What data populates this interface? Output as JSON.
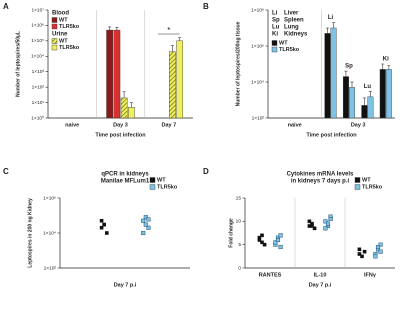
{
  "chart_data": [
    {
      "panel": "A",
      "type": "bar",
      "ylabel": "Number of leptospires/50µL",
      "xlabel": "Time post infection",
      "categories": [
        "naive",
        "Day 3",
        "Day 7"
      ],
      "log": true,
      "ylim": [
        1,
        10000000
      ],
      "yticks": [
        {
          "value": 1,
          "label": "1×10⁰"
        },
        {
          "value": 10,
          "label": "1×10¹"
        },
        {
          "value": 100,
          "label": "1×10²"
        },
        {
          "value": 1000,
          "label": "1×10³"
        },
        {
          "value": 10000,
          "label": "1×10⁴"
        },
        {
          "value": 100000,
          "label": "1×10⁵"
        },
        {
          "value": 1000000,
          "label": "1×10⁶"
        },
        {
          "value": 10000000,
          "label": "1×10⁷"
        }
      ],
      "series_groups": [
        {
          "name": "Blood",
          "series": [
            {
              "name": "WT",
              "color": "#8b1a1a",
              "values": [
                null,
                500000,
                null
              ],
              "errors": [
                null,
                300000,
                null
              ]
            },
            {
              "name": "TLR5ko",
              "color": "#d93030",
              "values": [
                null,
                500000,
                null
              ],
              "errors": [
                null,
                250000,
                null
              ]
            }
          ]
        },
        {
          "name": "Urine",
          "series": [
            {
              "name": "WT",
              "color": "#9a9a2a",
              "hatch": true,
              "values": [
                null,
                20,
                20000
              ],
              "errors": [
                null,
                30,
                30000
              ]
            },
            {
              "name": "TLR5ko",
              "color": "#f0ef60",
              "values": [
                null,
                5,
                100000
              ],
              "errors": [
                null,
                5,
                60000
              ]
            }
          ]
        }
      ],
      "annotations": [
        "*"
      ]
    },
    {
      "panel": "B",
      "type": "bar",
      "ylabel": "Number of leptospires/200ng tissue",
      "xlabel": "Time post infection",
      "x_groups": [
        "naive",
        "Day 3"
      ],
      "categories": [
        "Li",
        "Sp",
        "Lu",
        "Ki"
      ],
      "key": [
        [
          "Li",
          "Liver"
        ],
        [
          "Sp",
          "Spleen"
        ],
        [
          "Lu",
          "Lung"
        ],
        [
          "Ki",
          "Kidneys"
        ]
      ],
      "log": true,
      "ylim": [
        100,
        100000000
      ],
      "yticks": [
        {
          "value": 100,
          "label": "1×10²"
        },
        {
          "value": 10000,
          "label": "1×10⁴"
        },
        {
          "value": 1000000,
          "label": "1×10⁶"
        },
        {
          "value": 100000000,
          "label": "1×10⁸"
        }
      ],
      "series": [
        {
          "name": "WT",
          "color": "#111111",
          "values": [
            5000000,
            20000,
            500,
            50000
          ],
          "errors": [
            5000000,
            20000,
            800,
            50000
          ]
        },
        {
          "name": "TLR5ko",
          "color": "#7ec3e6",
          "values": [
            10000000,
            5000,
            1500,
            50000
          ],
          "errors": [
            10000000,
            5000,
            1500,
            30000
          ]
        }
      ]
    },
    {
      "panel": "C",
      "type": "dot",
      "title": "qPCR in kidneys",
      "subtitle": "Manilae MFLum1",
      "ylabel": "Leptospires in 200 ng Kidney",
      "xlabel": "Day 7 p.i",
      "log": true,
      "ylim": [
        100,
        1000000
      ],
      "yticks": [
        {
          "value": 100,
          "label": "1×10²"
        },
        {
          "value": 10000,
          "label": "1×10⁴"
        },
        {
          "value": 1000000,
          "label": "1×10⁶"
        }
      ],
      "series": [
        {
          "name": "WT",
          "color": "#111111",
          "values": [
            20000,
            30000,
            10000,
            50000,
            30000
          ]
        },
        {
          "name": "TLR5ko",
          "color": "#7ec3e6",
          "values": [
            50000,
            80000,
            20000,
            10000,
            30000,
            60000
          ]
        }
      ]
    },
    {
      "panel": "D",
      "type": "dot",
      "title": "Cytokines mRNA levels",
      "subtitle": "in kidneys 7 days p.i",
      "ylabel": "Fold change",
      "xlabel": "Day 7 p.i",
      "categories": [
        "RANTES",
        "IL-10",
        "IFNγ"
      ],
      "ylim": [
        0,
        15
      ],
      "yticks": [
        0,
        5,
        10,
        15
      ],
      "series": [
        {
          "name": "WT",
          "color": "#111111",
          "values": [
            [
              6,
              7,
              5,
              6.5,
              5.5
            ],
            [
              9,
              9.5,
              8.5,
              10,
              9
            ],
            [
              3,
              2.5,
              3.5,
              4
            ]
          ]
        },
        {
          "name": "TLR5ko",
          "color": "#7ec3e6",
          "values": [
            [
              5,
              6.5,
              7,
              5.5,
              6,
              4.5
            ],
            [
              10,
              9,
              11,
              8.5,
              9.5,
              10.5
            ],
            [
              3,
              4,
              5,
              2.5,
              4.5,
              3.5
            ]
          ]
        }
      ]
    }
  ]
}
